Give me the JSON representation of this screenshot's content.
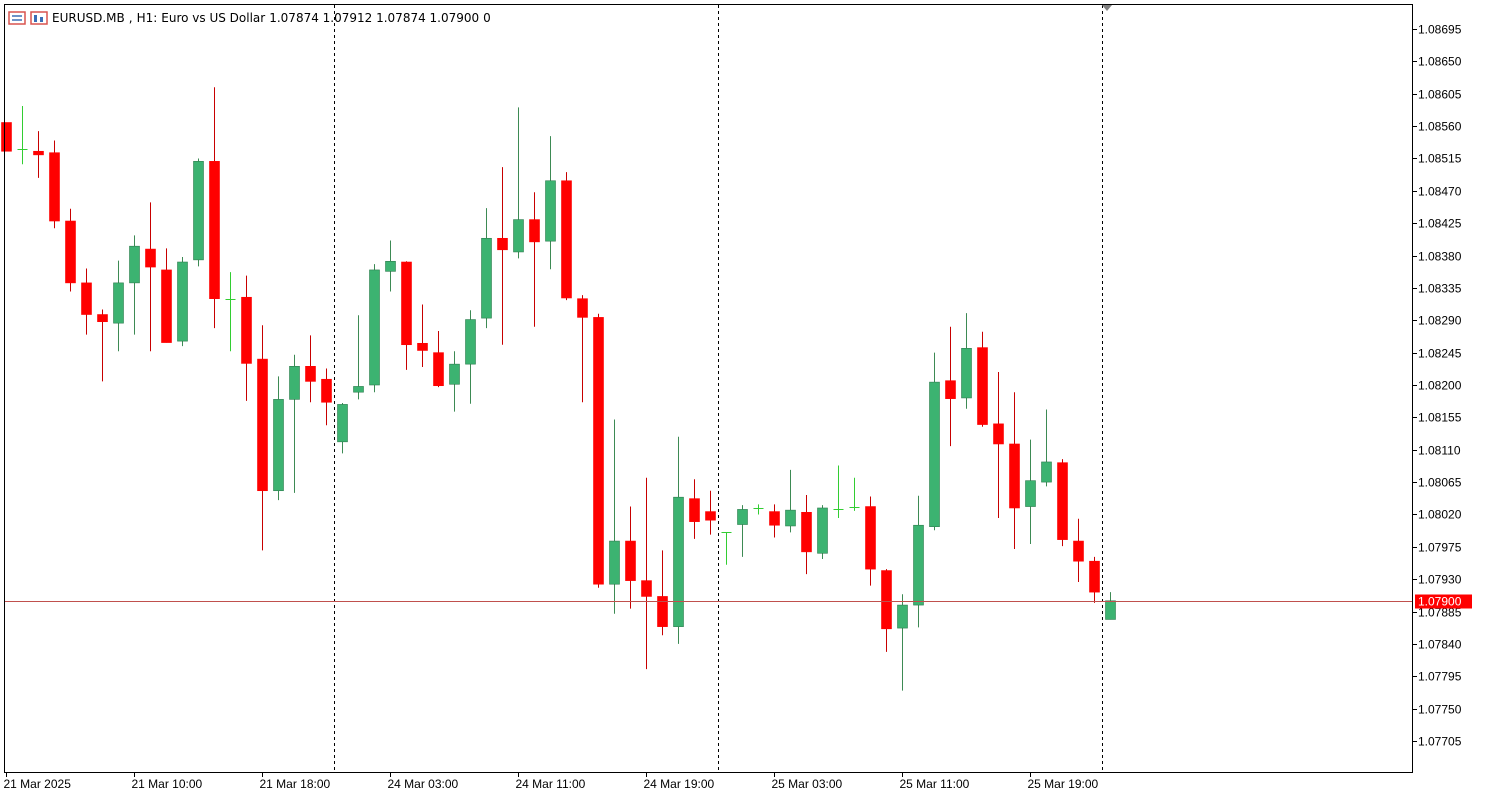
{
  "header": {
    "symbol": "EURUSD.MB",
    "timeframe": "H1:",
    "description": "Euro vs US Dollar",
    "ohlc": "1.07874 1.07912 1.07874 1.07900",
    "extra": "0",
    "icons": [
      "chart-list-icon",
      "chart-bars-icon"
    ]
  },
  "colors": {
    "bull": "#3cb371",
    "bear": "#ff0000",
    "wick_bull": "#3d8a54",
    "wick_bear": "#c80000",
    "doji": "#32cd32",
    "price_line": "#c0504d",
    "price_tag_bg": "#ff0000",
    "separator": "#000000",
    "frame": "#000000"
  },
  "chart_data": {
    "type": "candlestick",
    "symbol": "EURUSD.MB",
    "timeframe": "H1",
    "current_price": 1.079,
    "current_price_label": "1.07900",
    "y_range": [
      1.0766,
      1.0872
    ],
    "y_ticks": [
      "1.08695",
      "1.08650",
      "1.08605",
      "1.08560",
      "1.08515",
      "1.08470",
      "1.08425",
      "1.08380",
      "1.08335",
      "1.08290",
      "1.08245",
      "1.08200",
      "1.08155",
      "1.08110",
      "1.08065",
      "1.08020",
      "1.07975",
      "1.07930",
      "1.07885",
      "1.07840",
      "1.07795",
      "1.07750",
      "1.07705"
    ],
    "x_labels": [
      "21 Mar 2025",
      "21 Mar 10:00",
      "21 Mar 18:00",
      "24 Mar 03:00",
      "24 Mar 11:00",
      "24 Mar 19:00",
      "25 Mar 03:00",
      "25 Mar 11:00",
      "25 Mar 19:00"
    ],
    "x_label_bar_index": [
      0,
      8,
      16,
      24,
      32,
      40,
      48,
      56,
      64
    ],
    "day_separators_bar_index": [
      20.5,
      44.5,
      68.5
    ],
    "candles": [
      [
        1.08565,
        1.08565,
        1.08525,
        1.08525
      ],
      [
        1.08528,
        1.08588,
        1.08507,
        1.08528
      ],
      [
        1.08525,
        1.08553,
        1.08488,
        1.0852
      ],
      [
        1.08523,
        1.0854,
        1.08418,
        1.08428
      ],
      [
        1.08428,
        1.08445,
        1.0833,
        1.08342
      ],
      [
        1.08342,
        1.08362,
        1.0827,
        1.08298
      ],
      [
        1.08298,
        1.08305,
        1.08205,
        1.08288
      ],
      [
        1.08286,
        1.08373,
        1.08247,
        1.08342
      ],
      [
        1.08342,
        1.08408,
        1.0827,
        1.08393
      ],
      [
        1.08389,
        1.08454,
        1.08247,
        1.08364
      ],
      [
        1.0836,
        1.0839,
        1.08259,
        1.08259
      ],
      [
        1.08261,
        1.08378,
        1.08254,
        1.08371
      ],
      [
        1.08374,
        1.08515,
        1.08365,
        1.08511
      ],
      [
        1.08511,
        1.08614,
        1.08279,
        1.0832
      ],
      [
        1.0832,
        1.08357,
        1.08247,
        1.0832
      ],
      [
        1.08322,
        1.08352,
        1.08178,
        1.0823
      ],
      [
        1.08236,
        1.08283,
        1.0797,
        1.08053
      ],
      [
        1.08053,
        1.08212,
        1.0804,
        1.0818
      ],
      [
        1.0818,
        1.08242,
        1.0805,
        1.08226
      ],
      [
        1.08226,
        1.08269,
        1.08176,
        1.08205
      ],
      [
        1.08208,
        1.08223,
        1.08144,
        1.08176
      ],
      [
        1.08121,
        1.08175,
        1.08105,
        1.08173
      ],
      [
        1.0819,
        1.08297,
        1.0818,
        1.08198
      ],
      [
        1.082,
        1.08368,
        1.0819,
        1.0836
      ],
      [
        1.08358,
        1.08401,
        1.0833,
        1.08372
      ],
      [
        1.08371,
        1.08372,
        1.08221,
        1.08256
      ],
      [
        1.08258,
        1.08312,
        1.08225,
        1.08248
      ],
      [
        1.08245,
        1.08275,
        1.08197,
        1.08199
      ],
      [
        1.08201,
        1.08247,
        1.08163,
        1.08229
      ],
      [
        1.08229,
        1.08304,
        1.08174,
        1.08291
      ],
      [
        1.08293,
        1.08446,
        1.08279,
        1.08404
      ],
      [
        1.08404,
        1.08503,
        1.08256,
        1.08388
      ],
      [
        1.08385,
        1.08586,
        1.08376,
        1.0843
      ],
      [
        1.0843,
        1.08468,
        1.08281,
        1.08399
      ],
      [
        1.084,
        1.08546,
        1.08361,
        1.08484
      ],
      [
        1.08484,
        1.08496,
        1.08318,
        1.08321
      ],
      [
        1.0832,
        1.08325,
        1.08176,
        1.08294
      ],
      [
        1.08294,
        1.08299,
        1.07918,
        1.07923
      ],
      [
        1.07923,
        1.08152,
        1.07882,
        1.07983
      ],
      [
        1.07983,
        1.08031,
        1.07889,
        1.07928
      ],
      [
        1.07928,
        1.08071,
        1.07805,
        1.07906
      ],
      [
        1.07906,
        1.0797,
        1.07852,
        1.07864
      ],
      [
        1.07864,
        1.08128,
        1.0784,
        1.08044
      ],
      [
        1.08042,
        1.08069,
        1.07986,
        1.0801
      ],
      [
        1.08024,
        1.08053,
        1.07992,
        1.08012
      ],
      [
        1.07995,
        1.07995,
        1.0795,
        1.07995
      ],
      [
        1.08006,
        1.08033,
        1.07961,
        1.08027
      ],
      [
        1.08029,
        1.08034,
        1.0802,
        1.08026
      ],
      [
        1.08024,
        1.08034,
        1.07988,
        1.08005
      ],
      [
        1.08004,
        1.08082,
        1.07995,
        1.08026
      ],
      [
        1.08023,
        1.08047,
        1.07937,
        1.07968
      ],
      [
        1.07966,
        1.08033,
        1.07958,
        1.08029
      ],
      [
        1.08028,
        1.08088,
        1.08015,
        1.0803
      ],
      [
        1.0803,
        1.08071,
        1.08025,
        1.0803
      ],
      [
        1.08031,
        1.08045,
        1.07921,
        1.07944
      ],
      [
        1.07942,
        1.07944,
        1.07829,
        1.07861
      ],
      [
        1.07862,
        1.07909,
        1.07775,
        1.07894
      ],
      [
        1.07894,
        1.08046,
        1.07863,
        1.08005
      ],
      [
        1.08003,
        1.08245,
        1.07998,
        1.08204
      ],
      [
        1.08206,
        1.08281,
        1.08115,
        1.08181
      ],
      [
        1.08182,
        1.083,
        1.08167,
        1.08251
      ],
      [
        1.08252,
        1.08274,
        1.08142,
        1.08145
      ],
      [
        1.08146,
        1.08218,
        1.08015,
        1.08118
      ],
      [
        1.08118,
        1.0819,
        1.07972,
        1.08029
      ],
      [
        1.08031,
        1.08124,
        1.07979,
        1.08067
      ],
      [
        1.08065,
        1.08166,
        1.08059,
        1.08093
      ],
      [
        1.08092,
        1.08097,
        1.07976,
        1.07985
      ],
      [
        1.07983,
        1.08014,
        1.07926,
        1.07955
      ],
      [
        1.07955,
        1.07961,
        1.07897,
        1.07912
      ],
      [
        1.07874,
        1.07912,
        1.07874,
        1.079
      ]
    ]
  }
}
